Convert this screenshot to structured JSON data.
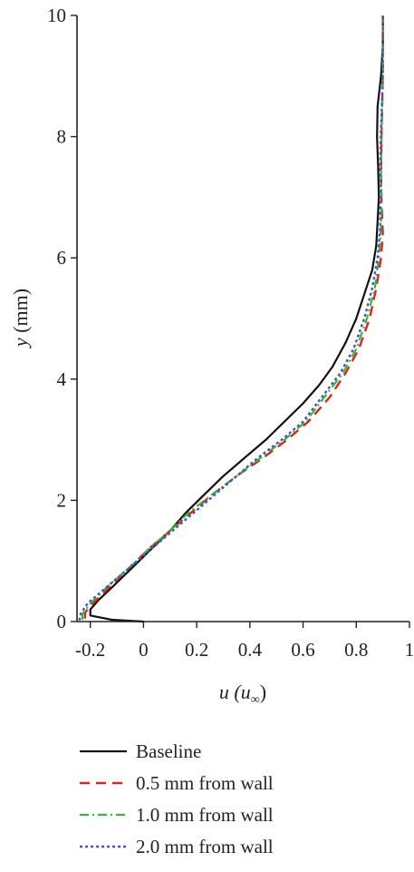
{
  "chart_data": {
    "type": "line",
    "title": "",
    "xlabel_var": "u",
    "xlabel_unit": "(u",
    "xlabel_sub": "∞",
    "xlabel_close": ")",
    "ylabel_var": "y",
    "ylabel_unit": " (mm)",
    "xlim": [
      -0.25,
      1.0
    ],
    "ylim": [
      0,
      10
    ],
    "xticks": [
      -0.2,
      0,
      0.2,
      0.4,
      0.6,
      0.8,
      1
    ],
    "xtick_labels": [
      "-0.2",
      "0",
      "0.2",
      "0.4",
      "0.6",
      "0.8",
      "1"
    ],
    "yticks": [
      0,
      2,
      4,
      6,
      8,
      10
    ],
    "ytick_labels": [
      "0",
      "2",
      "4",
      "6",
      "8",
      "10"
    ],
    "grid": false,
    "legend_position": "bottom",
    "series": [
      {
        "name": "Baseline",
        "color": "#111111",
        "dash": "solid",
        "points": [
          [
            0.0,
            0.0
          ],
          [
            -0.12,
            0.03
          ],
          [
            -0.2,
            0.1
          ],
          [
            -0.2,
            0.2
          ],
          [
            -0.17,
            0.35
          ],
          [
            -0.11,
            0.6
          ],
          [
            -0.04,
            0.9
          ],
          [
            0.03,
            1.2
          ],
          [
            0.1,
            1.5
          ],
          [
            0.16,
            1.8
          ],
          [
            0.23,
            2.1
          ],
          [
            0.3,
            2.4
          ],
          [
            0.38,
            2.7
          ],
          [
            0.46,
            3.0
          ],
          [
            0.53,
            3.3
          ],
          [
            0.6,
            3.6
          ],
          [
            0.66,
            3.9
          ],
          [
            0.71,
            4.2
          ],
          [
            0.76,
            4.6
          ],
          [
            0.8,
            5.0
          ],
          [
            0.83,
            5.4
          ],
          [
            0.86,
            5.8
          ],
          [
            0.875,
            6.2
          ],
          [
            0.88,
            6.6
          ],
          [
            0.885,
            7.0
          ],
          [
            0.882,
            7.5
          ],
          [
            0.878,
            8.0
          ],
          [
            0.88,
            8.5
          ],
          [
            0.893,
            9.0
          ],
          [
            0.9,
            9.5
          ],
          [
            0.9,
            10.0
          ]
        ]
      },
      {
        "name": "0.5 mm from wall",
        "color": "#dd2222",
        "dash": "long-dash",
        "points": [
          [
            -0.22,
            0.05
          ],
          [
            -0.22,
            0.15
          ],
          [
            -0.19,
            0.3
          ],
          [
            -0.12,
            0.6
          ],
          [
            -0.05,
            0.9
          ],
          [
            0.02,
            1.2
          ],
          [
            0.1,
            1.5
          ],
          [
            0.18,
            1.8
          ],
          [
            0.26,
            2.1
          ],
          [
            0.35,
            2.4
          ],
          [
            0.45,
            2.7
          ],
          [
            0.54,
            3.0
          ],
          [
            0.62,
            3.3
          ],
          [
            0.7,
            3.7
          ],
          [
            0.76,
            4.1
          ],
          [
            0.81,
            4.5
          ],
          [
            0.85,
            5.0
          ],
          [
            0.875,
            5.5
          ],
          [
            0.893,
            6.0
          ],
          [
            0.9,
            6.4
          ],
          [
            0.895,
            6.9
          ],
          [
            0.893,
            7.4
          ],
          [
            0.895,
            8.0
          ],
          [
            0.9,
            9.0
          ],
          [
            0.9,
            10.0
          ]
        ]
      },
      {
        "name": "1.0 mm from wall",
        "color": "#33bb33",
        "dash": "dash-dot",
        "points": [
          [
            -0.23,
            0.03
          ],
          [
            -0.23,
            0.12
          ],
          [
            -0.2,
            0.3
          ],
          [
            -0.13,
            0.6
          ],
          [
            -0.05,
            0.9
          ],
          [
            0.02,
            1.2
          ],
          [
            0.1,
            1.5
          ],
          [
            0.17,
            1.8
          ],
          [
            0.26,
            2.1
          ],
          [
            0.35,
            2.4
          ],
          [
            0.44,
            2.7
          ],
          [
            0.53,
            3.0
          ],
          [
            0.61,
            3.3
          ],
          [
            0.68,
            3.7
          ],
          [
            0.75,
            4.1
          ],
          [
            0.8,
            4.5
          ],
          [
            0.84,
            5.0
          ],
          [
            0.87,
            5.5
          ],
          [
            0.885,
            6.0
          ],
          [
            0.893,
            6.5
          ],
          [
            0.895,
            7.0
          ],
          [
            0.893,
            7.5
          ],
          [
            0.895,
            8.0
          ],
          [
            0.9,
            9.0
          ],
          [
            0.9,
            10.0
          ]
        ]
      },
      {
        "name": "2.0 mm from wall",
        "color": "#4455cc",
        "dash": "dotted",
        "points": [
          [
            -0.24,
            0.02
          ],
          [
            -0.24,
            0.1
          ],
          [
            -0.21,
            0.3
          ],
          [
            -0.13,
            0.6
          ],
          [
            -0.05,
            0.9
          ],
          [
            0.03,
            1.2
          ],
          [
            0.11,
            1.5
          ],
          [
            0.19,
            1.8
          ],
          [
            0.27,
            2.1
          ],
          [
            0.35,
            2.4
          ],
          [
            0.43,
            2.7
          ],
          [
            0.52,
            3.0
          ],
          [
            0.6,
            3.3
          ],
          [
            0.67,
            3.7
          ],
          [
            0.74,
            4.1
          ],
          [
            0.79,
            4.5
          ],
          [
            0.83,
            5.0
          ],
          [
            0.86,
            5.5
          ],
          [
            0.88,
            6.0
          ],
          [
            0.89,
            6.5
          ],
          [
            0.89,
            7.0
          ],
          [
            0.89,
            7.5
          ],
          [
            0.892,
            8.0
          ],
          [
            0.9,
            9.0
          ],
          [
            0.9,
            10.0
          ]
        ]
      }
    ]
  }
}
